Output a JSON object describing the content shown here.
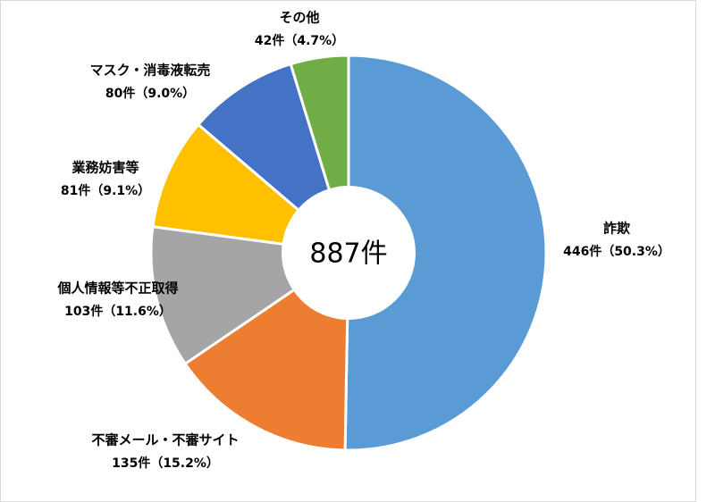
{
  "chart_data": {
    "type": "donut",
    "center_label": "887件",
    "categories": [
      "詐欺",
      "不審メール・不審サイト",
      "個人情報等不正取得",
      "業務妨害等",
      "マスク・消毒液転売",
      "その他"
    ],
    "values": [
      446,
      135,
      103,
      81,
      80,
      42
    ],
    "value_labels": [
      "446件（50.3%）",
      "135件（15.2%）",
      "103件（11.6%）",
      "81件（9.1%）",
      "80件（9.0%）",
      "42件（4.7%）"
    ],
    "colors": [
      "#5b9bd5",
      "#ed7d31",
      "#a5a5a5",
      "#ffc000",
      "#4472c4",
      "#70ad47"
    ]
  }
}
